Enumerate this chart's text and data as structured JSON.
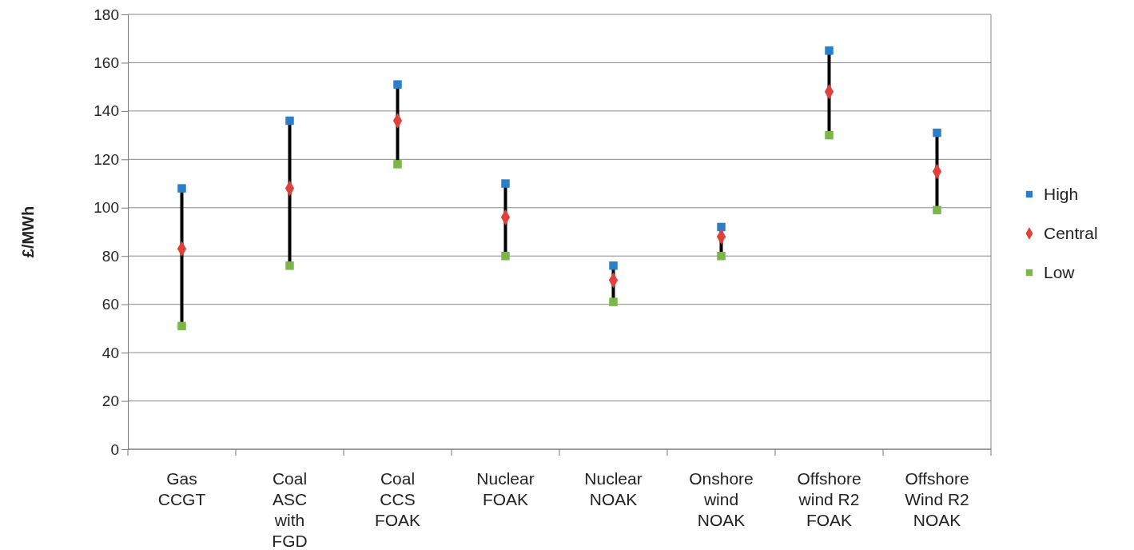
{
  "chart_data": {
    "type": "scatter",
    "ylabel": "£/MWh",
    "categories": [
      "Gas CCGT",
      "Coal ASC with FGD",
      "Coal CCS FOAK",
      "Nuclear FOAK",
      "Nuclear NOAK",
      "Onshore wind NOAK",
      "Offshore wind R2 FOAK",
      "Offshore Wind R2 NOAK"
    ],
    "series": [
      {
        "name": "High",
        "color": "#2b7fc8",
        "marker": "square",
        "values": [
          108,
          136,
          151,
          110,
          76,
          92,
          165,
          131
        ]
      },
      {
        "name": "Central",
        "color": "#e0413a",
        "marker": "diamond",
        "values": [
          83,
          108,
          136,
          96,
          70,
          88,
          148,
          115
        ]
      },
      {
        "name": "Low",
        "color": "#7ab648",
        "marker": "square",
        "values": [
          51,
          76,
          118,
          80,
          61,
          80,
          130,
          99
        ]
      }
    ],
    "ylim": [
      0,
      180
    ],
    "yticks": [
      0,
      20,
      40,
      60,
      80,
      100,
      120,
      140,
      160,
      180
    ],
    "grid": "y",
    "legend": "right"
  }
}
